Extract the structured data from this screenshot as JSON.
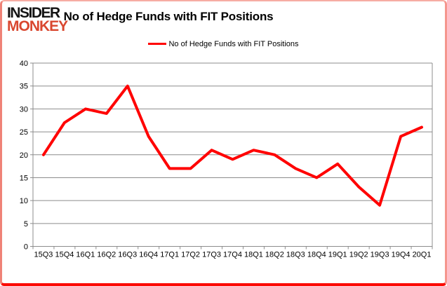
{
  "header": {
    "logo_line1": "INSIDER",
    "logo_line2": "MONKEY",
    "title": "No of Hedge Funds with FIT Positions"
  },
  "legend": {
    "label": "No of Hedge Funds with FIT Positions",
    "line_color": "#ff0000"
  },
  "chart_data": {
    "type": "line",
    "title": "No of Hedge Funds with FIT Positions",
    "categories": [
      "15Q3",
      "15Q4",
      "16Q1",
      "16Q2",
      "16Q3",
      "16Q4",
      "17Q1",
      "17Q2",
      "17Q3",
      "17Q4",
      "18Q1",
      "18Q2",
      "18Q3",
      "18Q4",
      "19Q1",
      "19Q2",
      "19Q3",
      "19Q4",
      "20Q1"
    ],
    "series": [
      {
        "name": "No of Hedge Funds with FIT Positions",
        "color": "#ff0000",
        "values": [
          20,
          27,
          30,
          29,
          35,
          24,
          17,
          17,
          21,
          19,
          21,
          20,
          17,
          15,
          18,
          13,
          9,
          24,
          26
        ]
      }
    ],
    "xlabel": "",
    "ylabel": "",
    "ylim": [
      0,
      40
    ],
    "ytick_step": 5,
    "grid": true,
    "legend_position": "top-center",
    "colors": {
      "gridline": "#8c8c8c",
      "axis": "#8c8c8c",
      "tick_label": "#000000",
      "background": "#ffffff"
    }
  }
}
